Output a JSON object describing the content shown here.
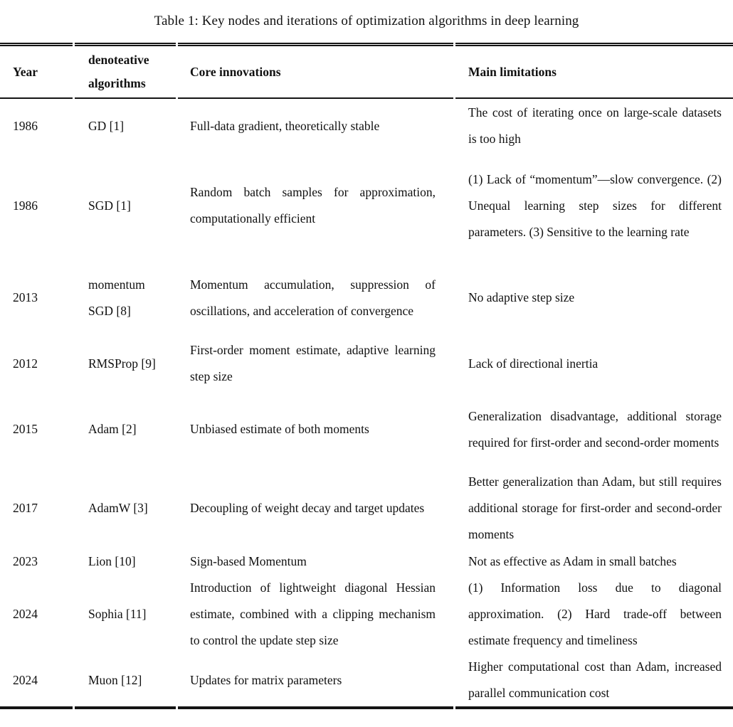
{
  "table": {
    "caption": "Table 1: Key nodes and iterations of optimization algorithms in deep learning",
    "columns": [
      "Year",
      "denoteative algorithms",
      "Core innovations",
      "Main limitations"
    ],
    "rows": [
      {
        "year": "1986",
        "algorithm": "GD [1]",
        "core_innovations": "Full-data gradient, theoretically stable",
        "main_limitations": "The cost of iterating once on large-scale datasets is too high"
      },
      {
        "year": "1986",
        "algorithm": "SGD [1]",
        "core_innovations": "Random batch samples for approximation, computationally efficient",
        "main_limitations": "(1) Lack of “momentum”—slow convergence. (2) Unequal learning step sizes for different parameters. (3) Sensitive to the learning rate"
      },
      {
        "year": "2013",
        "algorithm": "momentum SGD [8]",
        "core_innovations": "Momentum accumulation, suppression of oscillations, and acceleration of convergence",
        "main_limitations": "No adaptive step size"
      },
      {
        "year": "2012",
        "algorithm": "RMSProp [9]",
        "core_innovations": "First-order moment estimate, adaptive learning step size",
        "main_limitations": "Lack of directional inertia"
      },
      {
        "year": "2015",
        "algorithm": "Adam [2]",
        "core_innovations": "Unbiased estimate of both moments",
        "main_limitations": "Generalization disadvantage, additional storage required for first-order and second-order moments"
      },
      {
        "year": "2017",
        "algorithm": "AdamW [3]",
        "core_innovations": "Decoupling of weight decay and target updates",
        "main_limitations": "Better generalization than Adam, but still requires additional storage for first-order and second-order moments"
      },
      {
        "year": "2023",
        "algorithm": "Lion [10]",
        "core_innovations": "Sign-based Momentum",
        "main_limitations": "Not as effective as Adam in small batches"
      },
      {
        "year": "2024",
        "algorithm": "Sophia [11]",
        "core_innovations": "Introduction of lightweight diagonal Hessian estimate, combined with a clipping mechanism to control the update step size",
        "main_limitations": "(1) Information loss due to diagonal approximation. (2) Hard trade-off between estimate frequency and timeliness"
      },
      {
        "year": "2024",
        "algorithm": "Muon [12]",
        "core_innovations": "Updates for matrix parameters",
        "main_limitations": "Higher computational cost than Adam, increased parallel communication cost"
      }
    ]
  }
}
